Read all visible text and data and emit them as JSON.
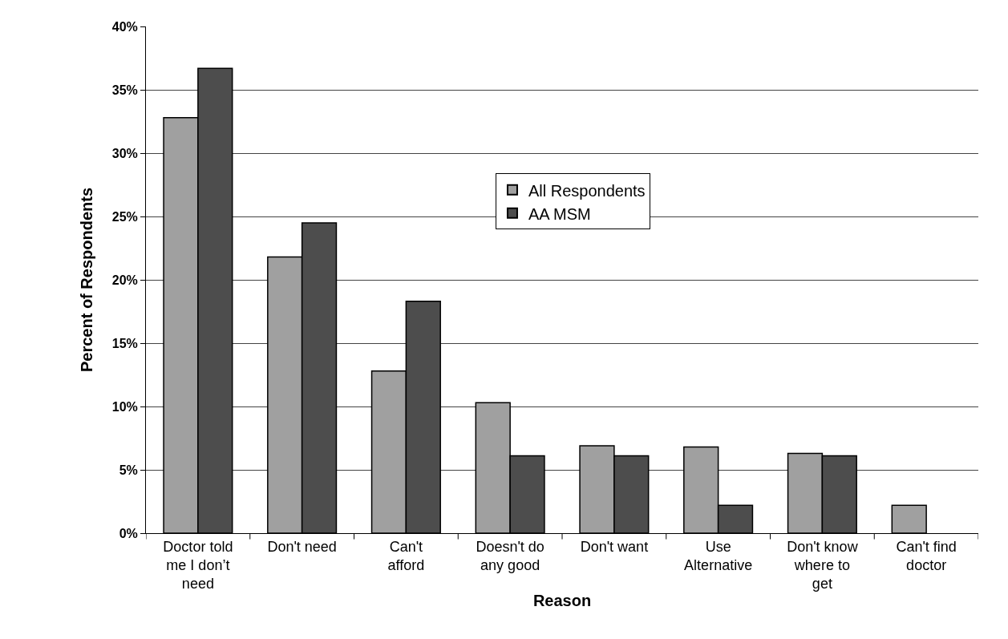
{
  "chart_data": {
    "type": "bar",
    "xlabel": "Reason",
    "ylabel": "Percent of Respondents",
    "categories": [
      "Doctor told me I don’t need",
      "Don't need",
      "Can't afford",
      "Doesn't do any good",
      "Don't want",
      "Use Alternative",
      "Don't know where to get",
      "Can't find doctor"
    ],
    "series": [
      {
        "name": "All Respondents",
        "color": "#a0a0a0",
        "values": [
          32.8,
          21.8,
          12.8,
          10.3,
          6.9,
          6.8,
          6.3,
          2.2
        ]
      },
      {
        "name": "AA MSM",
        "color": "#4d4d4d",
        "values": [
          36.7,
          24.5,
          18.3,
          6.1,
          6.1,
          2.2,
          6.1,
          null
        ]
      }
    ],
    "ylim": [
      0,
      40
    ],
    "yticks": [
      {
        "value": 0,
        "label": "0%"
      },
      {
        "value": 5,
        "label": "5%"
      },
      {
        "value": 10,
        "label": "10%"
      },
      {
        "value": 15,
        "label": "15%"
      },
      {
        "value": 20,
        "label": "20%"
      },
      {
        "value": 25,
        "label": "25%"
      },
      {
        "value": 30,
        "label": "30%"
      },
      {
        "value": 35,
        "label": "35%"
      },
      {
        "value": 40,
        "label": "40%"
      }
    ],
    "grid": "y",
    "legend": "top"
  }
}
